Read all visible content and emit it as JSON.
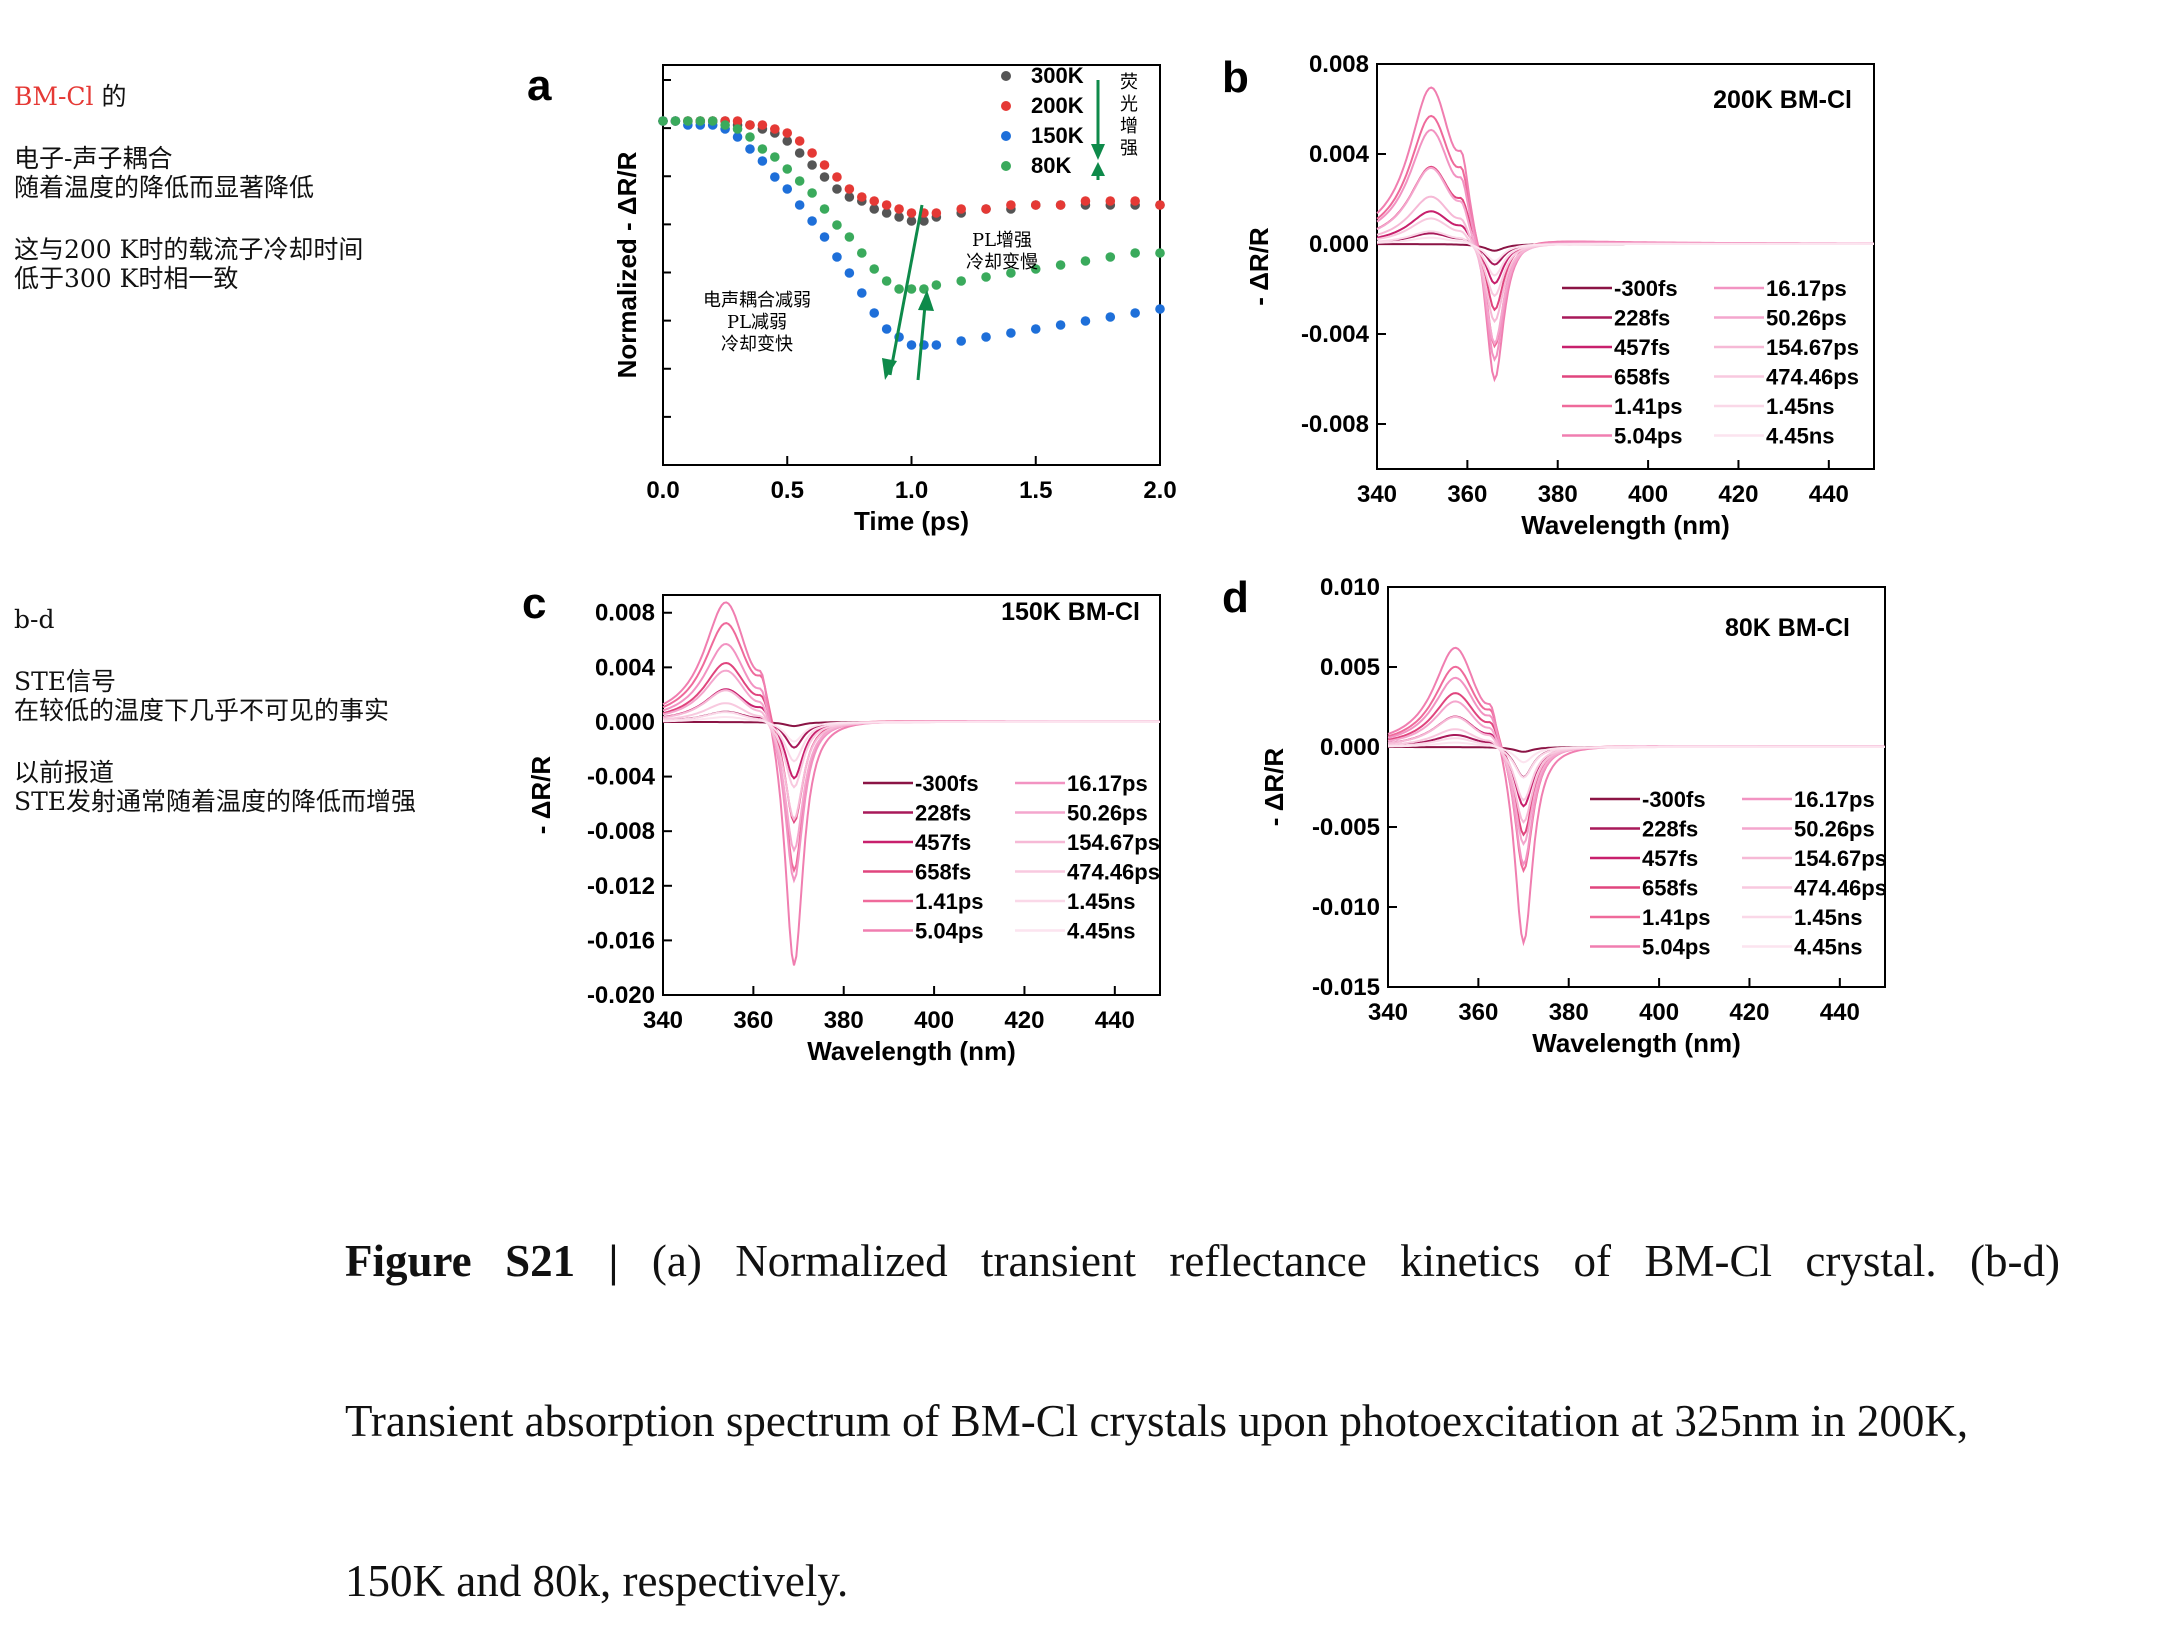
{
  "notes": {
    "n1_red": "BM-Cl",
    "n1_rest": " 的",
    "n2": "电子-声子耦合",
    "n3": "随着温度的降低而显著降低",
    "n4": "这与200 K时的载流子冷却时间",
    "n5": "低于300 K时相一致",
    "n6": "b-d",
    "n7": "STE信号",
    "n8": "在较低的温度下几乎不可见的事实",
    "n9": "以前报道",
    "n10": "STE发射通常随着温度的降低而增强"
  },
  "caption": {
    "bold": "Figure  S21  |",
    "line1": " (a)  Normalized  transient  reflectance  kinetics  of  BM-Cl  crystal.  (b-d)",
    "line2": "Transient absorption spectrum of BM-Cl crystals upon photoexcitation at 325nm in 200K,",
    "line3": "150K and 80k, respectively."
  },
  "colors": {
    "s300": "#555555",
    "s200": "#e53935",
    "s150": "#1e6fd9",
    "s80": "#3aaa5c",
    "arrow": "#0e8a4a",
    "spec": [
      "#8b1445",
      "#a8195a",
      "#c8206d",
      "#e0457e",
      "#ef6a9b",
      "#f07eb0",
      "#f293c2",
      "#f4a6cd",
      "#f6b9d6",
      "#f8c9df",
      "#fad8e8",
      "#fce4ef"
    ]
  },
  "chart_data": [
    {
      "panel": "a",
      "type": "scatter",
      "xlabel": "Time (ps)",
      "ylabel": "Normalized - ΔR/R",
      "xlim": [
        0,
        2.0
      ],
      "ylim": [
        0,
        1
      ],
      "xticks": [
        0.0,
        0.5,
        1.0,
        1.5,
        2.0
      ],
      "legend": "top-right",
      "annotations": [
        "荧光增强",
        "PL增强\n冷却变慢",
        "电声耦合减弱\nPL减弱\n冷却变快"
      ],
      "series": [
        {
          "name": "300K",
          "x": [
            0,
            0.05,
            0.1,
            0.15,
            0.2,
            0.25,
            0.3,
            0.35,
            0.4,
            0.45,
            0.5,
            0.55,
            0.6,
            0.65,
            0.7,
            0.75,
            0.8,
            0.85,
            0.9,
            0.95,
            1.0,
            1.05,
            1.1,
            1.2,
            1.3,
            1.4,
            1.5,
            1.6,
            1.7,
            1.8,
            1.9,
            2.0
          ],
          "y": [
            0.86,
            0.86,
            0.86,
            0.86,
            0.86,
            0.86,
            0.85,
            0.85,
            0.84,
            0.83,
            0.81,
            0.78,
            0.75,
            0.72,
            0.69,
            0.67,
            0.66,
            0.64,
            0.63,
            0.62,
            0.61,
            0.61,
            0.62,
            0.63,
            0.64,
            0.64,
            0.65,
            0.65,
            0.65,
            0.65,
            0.65,
            0.65
          ]
        },
        {
          "name": "200K",
          "x": [
            0,
            0.05,
            0.1,
            0.15,
            0.2,
            0.25,
            0.3,
            0.35,
            0.4,
            0.45,
            0.5,
            0.55,
            0.6,
            0.65,
            0.7,
            0.75,
            0.8,
            0.85,
            0.9,
            0.95,
            1.0,
            1.05,
            1.1,
            1.2,
            1.3,
            1.4,
            1.5,
            1.6,
            1.7,
            1.8,
            1.9,
            2.0
          ],
          "y": [
            0.86,
            0.86,
            0.86,
            0.86,
            0.86,
            0.86,
            0.86,
            0.85,
            0.85,
            0.84,
            0.83,
            0.81,
            0.78,
            0.75,
            0.72,
            0.69,
            0.67,
            0.66,
            0.65,
            0.64,
            0.63,
            0.63,
            0.63,
            0.64,
            0.64,
            0.65,
            0.65,
            0.65,
            0.66,
            0.66,
            0.66,
            0.65
          ]
        },
        {
          "name": "150K",
          "x": [
            0,
            0.05,
            0.1,
            0.15,
            0.2,
            0.25,
            0.3,
            0.35,
            0.4,
            0.45,
            0.5,
            0.55,
            0.6,
            0.65,
            0.7,
            0.75,
            0.8,
            0.85,
            0.9,
            0.95,
            1.0,
            1.05,
            1.1,
            1.2,
            1.3,
            1.4,
            1.5,
            1.6,
            1.7,
            1.8,
            1.9,
            2.0
          ],
          "y": [
            0.86,
            0.86,
            0.85,
            0.85,
            0.85,
            0.84,
            0.82,
            0.79,
            0.76,
            0.72,
            0.69,
            0.65,
            0.61,
            0.57,
            0.52,
            0.48,
            0.43,
            0.38,
            0.34,
            0.32,
            0.3,
            0.3,
            0.3,
            0.31,
            0.32,
            0.33,
            0.34,
            0.35,
            0.36,
            0.37,
            0.38,
            0.39
          ]
        },
        {
          "name": "80K",
          "x": [
            0,
            0.05,
            0.1,
            0.15,
            0.2,
            0.25,
            0.3,
            0.35,
            0.4,
            0.45,
            0.5,
            0.55,
            0.6,
            0.65,
            0.7,
            0.75,
            0.8,
            0.85,
            0.9,
            0.95,
            1.0,
            1.05,
            1.1,
            1.2,
            1.3,
            1.4,
            1.5,
            1.6,
            1.7,
            1.8,
            1.9,
            2.0
          ],
          "y": [
            0.86,
            0.86,
            0.86,
            0.86,
            0.86,
            0.85,
            0.84,
            0.82,
            0.79,
            0.77,
            0.74,
            0.71,
            0.68,
            0.64,
            0.6,
            0.57,
            0.53,
            0.49,
            0.46,
            0.44,
            0.44,
            0.44,
            0.45,
            0.46,
            0.47,
            0.48,
            0.49,
            0.5,
            0.51,
            0.52,
            0.53,
            0.53
          ]
        }
      ]
    },
    {
      "panel": "b",
      "type": "line",
      "title": "200K BM-Cl",
      "xlabel": "Wavelength (nm)",
      "ylabel": "- ΔR/R",
      "xlim": [
        340,
        450
      ],
      "ylim": [
        -0.01,
        0.008
      ],
      "xticks": [
        340,
        360,
        380,
        400,
        420,
        440
      ],
      "yticks": [
        -0.008,
        -0.004,
        0.0,
        0.004,
        0.008
      ],
      "ytick_labels": [
        "-0.008",
        "-0.004",
        "0.000",
        "0.004",
        "0.008"
      ],
      "legend": "bottom-right",
      "peak_wavelength": 352,
      "dip_wavelength": 366,
      "series": [
        {
          "name": "-300fs",
          "peak": 0.0,
          "dip": -0.0003
        },
        {
          "name": "228fs",
          "peak": 0.0005,
          "dip": -0.001
        },
        {
          "name": "457fs",
          "peak": 0.0015,
          "dip": -0.002
        },
        {
          "name": "658fs",
          "peak": 0.0035,
          "dip": -0.0035
        },
        {
          "name": "1.41ps",
          "peak": 0.0058,
          "dip": -0.0055
        },
        {
          "name": "5.04ps",
          "peak": 0.0071,
          "dip": -0.0072
        },
        {
          "name": "16.17ps",
          "peak": 0.0052,
          "dip": -0.006
        },
        {
          "name": "50.26ps",
          "peak": 0.0035,
          "dip": -0.005
        },
        {
          "name": "154.67ps",
          "peak": 0.0022,
          "dip": -0.0038
        },
        {
          "name": "474.46ps",
          "peak": 0.0012,
          "dip": -0.0025
        },
        {
          "name": "1.45ns",
          "peak": 0.0006,
          "dip": -0.0015
        },
        {
          "name": "4.45ns",
          "peak": 0.0003,
          "dip": -0.0008
        }
      ]
    },
    {
      "panel": "c",
      "type": "line",
      "title": "150K BM-Cl",
      "xlabel": "Wavelength (nm)",
      "ylabel": "- ΔR/R",
      "xlim": [
        340,
        450
      ],
      "ylim": [
        -0.02,
        0.0093
      ],
      "xticks": [
        340,
        360,
        380,
        400,
        420,
        440
      ],
      "yticks": [
        -0.02,
        -0.016,
        -0.012,
        -0.008,
        -0.004,
        0.0,
        0.004,
        0.008
      ],
      "ytick_labels": [
        "-0.020",
        "-0.016",
        "-0.012",
        "-0.008",
        "-0.004",
        "0.000",
        "0.004",
        "0.008"
      ],
      "legend": "bottom-right",
      "peak_wavelength": 354,
      "dip_wavelength": 369,
      "series": [
        {
          "name": "-300fs",
          "peak": 0.0,
          "dip": -0.0003
        },
        {
          "name": "228fs",
          "peak": 0.0008,
          "dip": -0.002
        },
        {
          "name": "457fs",
          "peak": 0.0025,
          "dip": -0.0045
        },
        {
          "name": "658fs",
          "peak": 0.0045,
          "dip": -0.008
        },
        {
          "name": "1.41ps",
          "peak": 0.0075,
          "dip": -0.012
        },
        {
          "name": "5.04ps",
          "peak": 0.0092,
          "dip": -0.0192
        },
        {
          "name": "16.17ps",
          "peak": 0.006,
          "dip": -0.0125
        },
        {
          "name": "50.26ps",
          "peak": 0.004,
          "dip": -0.01
        },
        {
          "name": "154.67ps",
          "peak": 0.0025,
          "dip": -0.0075
        },
        {
          "name": "474.46ps",
          "peak": 0.0015,
          "dip": -0.005
        },
        {
          "name": "1.45ns",
          "peak": 0.0008,
          "dip": -0.003
        },
        {
          "name": "4.45ns",
          "peak": 0.0004,
          "dip": -0.0015
        }
      ]
    },
    {
      "panel": "d",
      "type": "line",
      "title": "80K BM-Cl",
      "xlabel": "Wavelength (nm)",
      "ylabel": "- ΔR/R",
      "xlim": [
        340,
        450
      ],
      "ylim": [
        -0.015,
        0.01
      ],
      "xticks": [
        340,
        360,
        380,
        400,
        420,
        440
      ],
      "yticks": [
        -0.015,
        -0.01,
        -0.005,
        0.0,
        0.005,
        0.01
      ],
      "ytick_labels": [
        "-0.015",
        "-0.010",
        "-0.005",
        "0.000",
        "0.005",
        "0.010"
      ],
      "legend": "bottom-right",
      "peak_wavelength": 355,
      "dip_wavelength": 370,
      "series": [
        {
          "name": "-300fs",
          "peak": 0.0,
          "dip": -0.0003
        },
        {
          "name": "228fs",
          "peak": 0.0008,
          "dip": -0.002
        },
        {
          "name": "457fs",
          "peak": 0.002,
          "dip": -0.004
        },
        {
          "name": "658fs",
          "peak": 0.0035,
          "dip": -0.006
        },
        {
          "name": "1.41ps",
          "peak": 0.0052,
          "dip": -0.0085
        },
        {
          "name": "5.04ps",
          "peak": 0.0065,
          "dip": -0.0132
        },
        {
          "name": "16.17ps",
          "peak": 0.0045,
          "dip": -0.008
        },
        {
          "name": "50.26ps",
          "peak": 0.003,
          "dip": -0.0065
        },
        {
          "name": "154.67ps",
          "peak": 0.002,
          "dip": -0.005
        },
        {
          "name": "474.46ps",
          "peak": 0.0012,
          "dip": -0.0035
        },
        {
          "name": "1.45ns",
          "peak": 0.0006,
          "dip": -0.002
        },
        {
          "name": "4.45ns",
          "peak": 0.0003,
          "dip": -0.001
        }
      ]
    }
  ]
}
